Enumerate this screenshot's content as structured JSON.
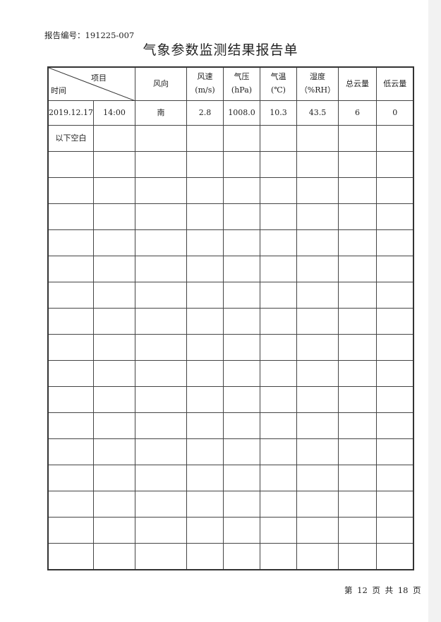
{
  "report_number": "报告编号：191225-007",
  "title": "气象参数监测结果报告单",
  "table": {
    "header": {
      "diagonal_top": "项目",
      "diagonal_bottom": "时间",
      "columns": [
        {
          "name": "风向",
          "unit": ""
        },
        {
          "name": "风速",
          "unit": "(m/s)"
        },
        {
          "name": "气压",
          "unit": "(hPa)"
        },
        {
          "name": "气温",
          "unit": "(℃)"
        },
        {
          "name": "湿度",
          "unit": "（%RH）"
        },
        {
          "name": "总云量",
          "unit": ""
        },
        {
          "name": "低云量",
          "unit": ""
        }
      ]
    },
    "rows": [
      [
        "2019.12.17",
        "14:00",
        "南",
        "2.8",
        "1008.0",
        "10.3",
        "43.5",
        "6",
        "0"
      ],
      [
        "以下空白",
        "",
        "",
        "",
        "",
        "",
        "",
        "",
        ""
      ]
    ]
  },
  "footer": "第 12 页 共 18 页"
}
